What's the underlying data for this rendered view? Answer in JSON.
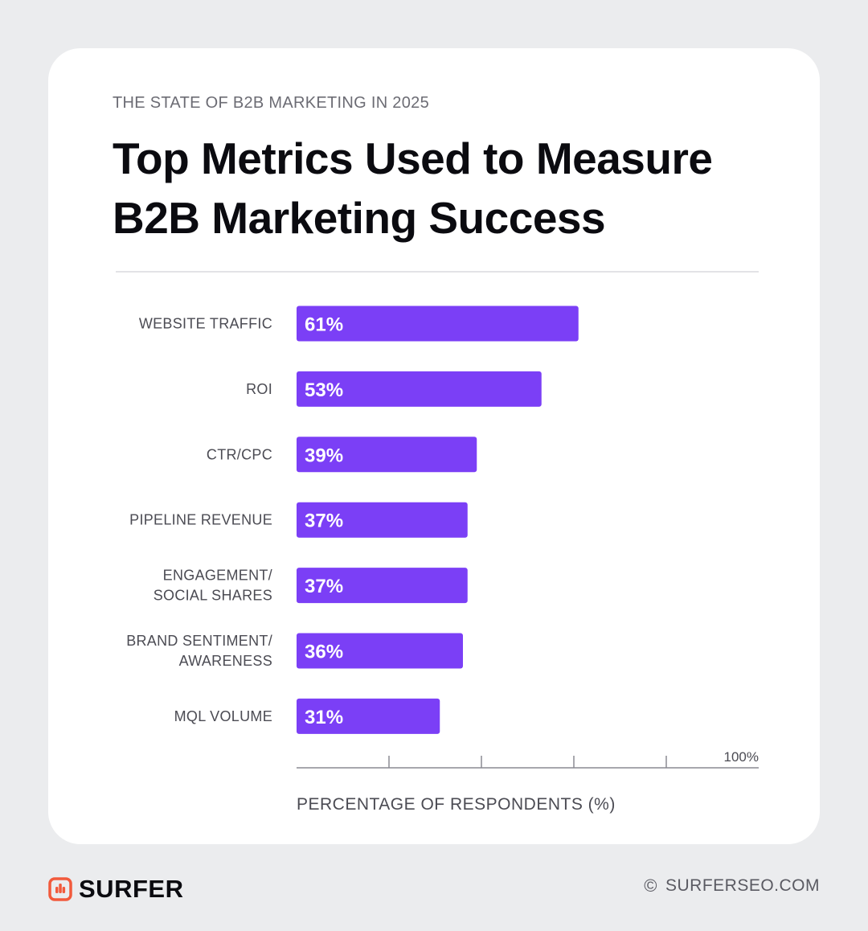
{
  "header": {
    "eyebrow": "THE STATE OF B2B MARKETING IN 2025",
    "title": "Top Metrics Used to Measure B2B Marketing Success"
  },
  "chart_data": {
    "type": "bar",
    "orientation": "horizontal",
    "categories": [
      [
        "WEBSITE TRAFFIC"
      ],
      [
        "ROI"
      ],
      [
        "CTR/CPC"
      ],
      [
        "PIPELINE REVENUE"
      ],
      [
        "ENGAGEMENT/",
        "SOCIAL SHARES"
      ],
      [
        "BRAND SENTIMENT/",
        "AWARENESS"
      ],
      [
        "MQL VOLUME"
      ]
    ],
    "values": [
      61,
      53,
      39,
      37,
      37,
      36,
      31
    ],
    "value_labels": [
      "61%",
      "53%",
      "39%",
      "37%",
      "37%",
      "36%",
      "31%"
    ],
    "xlim": [
      0,
      100
    ],
    "x_ticks": [
      20,
      40,
      60,
      80,
      100
    ],
    "x_tick_label_max": "100%",
    "xlabel": "PERCENTAGE OF RESPONDENTS (%)",
    "bar_color": "#7b3ff6"
  },
  "footer": {
    "brand": "SURFER",
    "brand_color": "#f25a3c",
    "brand_icon": "surfer-logo-icon",
    "copyright_icon": "copyright-icon",
    "copyright_symbol": "©",
    "site": "SURFERSEO.COM"
  }
}
